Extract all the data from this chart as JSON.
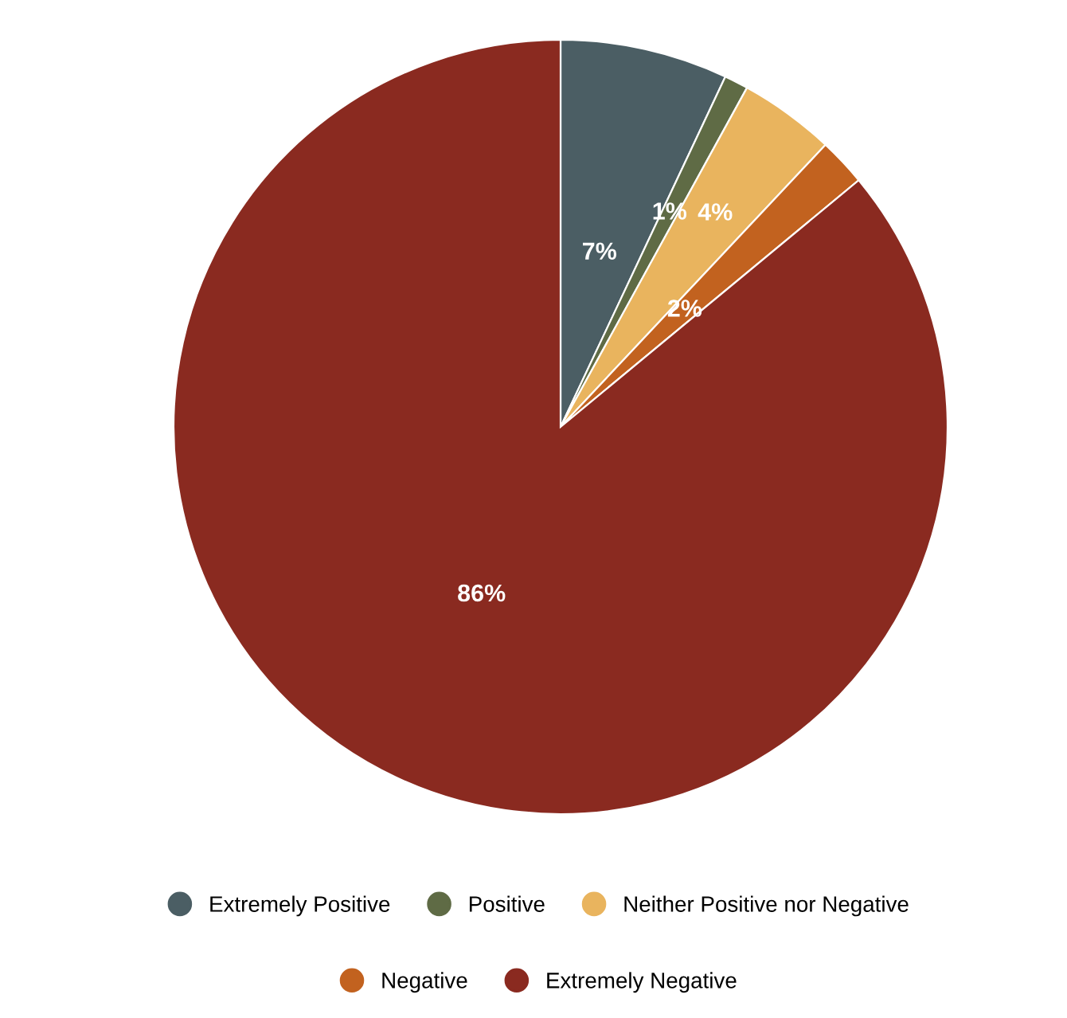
{
  "chart_data": {
    "type": "pie",
    "categories": [
      "Extremely Positive",
      "Positive",
      "Neither Positive nor Negative",
      "Negative",
      "Extremely Negative"
    ],
    "values": [
      7,
      1,
      4,
      2,
      86
    ],
    "colors": [
      "#4b5e64",
      "#5f6b45",
      "#e9b45e",
      "#c2621f",
      "#8a2a20"
    ],
    "value_labels": [
      "7%",
      "1%",
      "4%",
      "2%",
      "86%"
    ],
    "legend": "bottom"
  }
}
